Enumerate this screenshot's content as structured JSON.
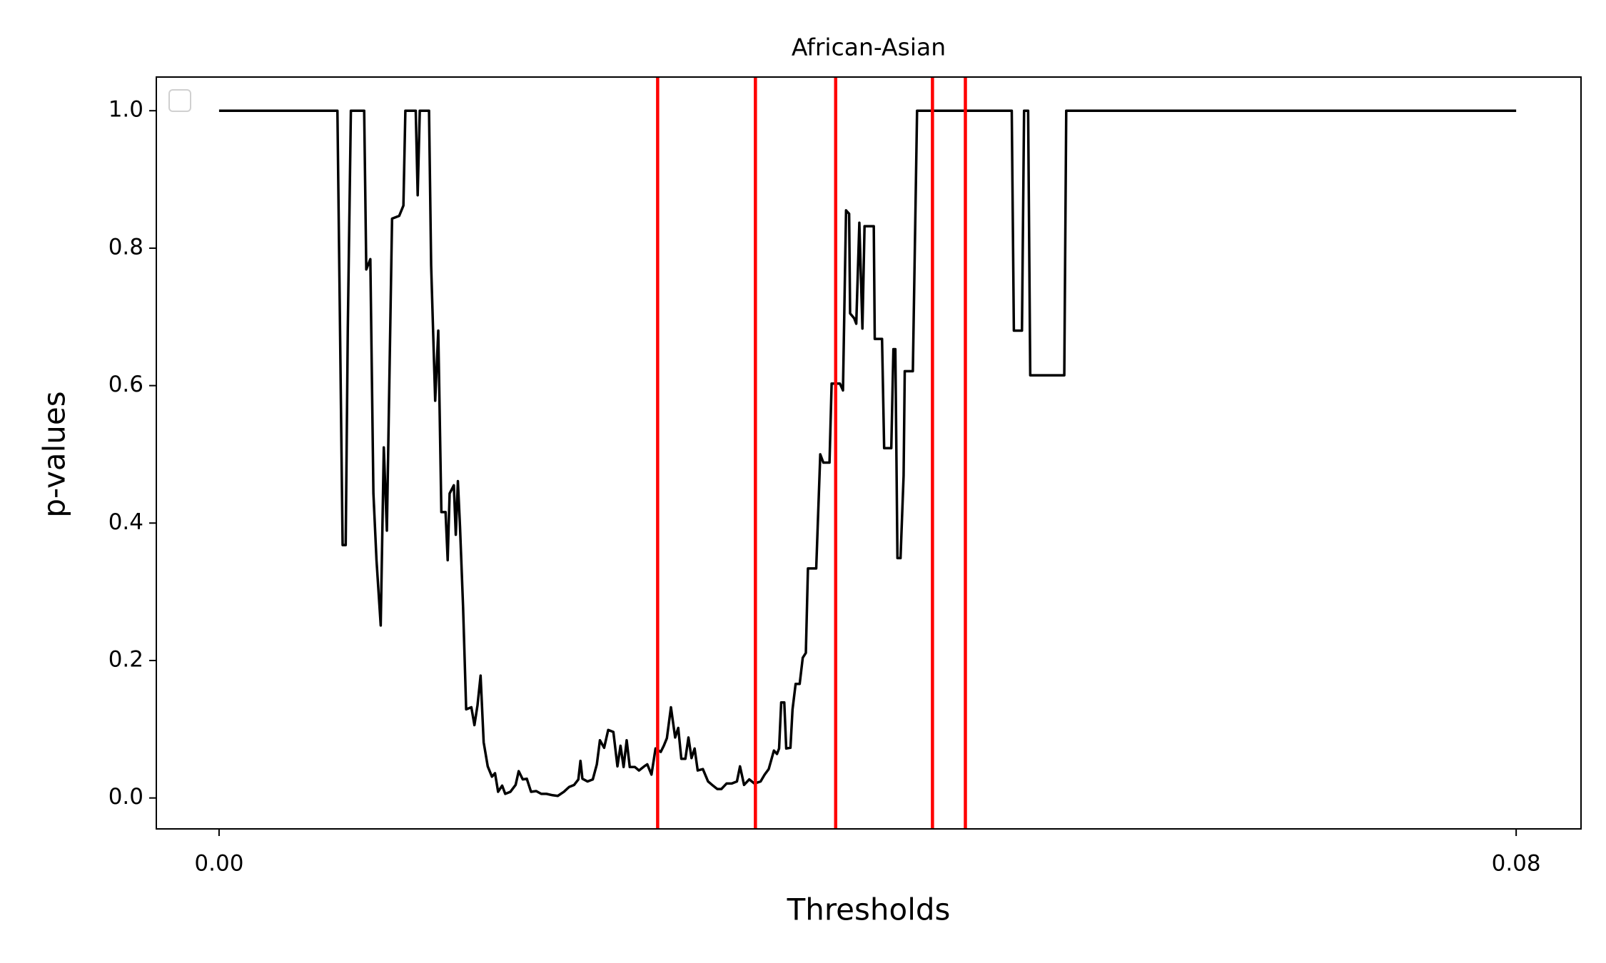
{
  "chart_data": {
    "type": "line",
    "title": "African-Asian",
    "xlabel": "Thresholds",
    "ylabel": "p-values",
    "xlim": [
      -0.00387,
      0.084
    ],
    "ylim": [
      -0.045,
      1.049
    ],
    "xticks": [
      {
        "value": 0,
        "label": "0.00"
      },
      0.08
    ],
    "yticks": [
      {
        "value": 0,
        "label": "0.0"
      },
      0.2,
      0.4,
      0.6,
      0.8,
      {
        "value": 1,
        "label": "1.0"
      }
    ],
    "legend": "upper left",
    "grid": false,
    "vlines": {
      "color": "#ff0000",
      "x": [
        0.02705,
        0.03308,
        0.03803,
        0.044,
        0.04603
      ]
    },
    "series": [
      {
        "color": "#000000",
        "x": [
          0,
          0.0073,
          0.00762,
          0.00781,
          0.00794,
          0.00813,
          0.00895,
          0.00908,
          0.00933,
          0.00952,
          0.00971,
          0.00997,
          0.01016,
          0.01035,
          0.01067,
          0.01111,
          0.01137,
          0.01149,
          0.01213,
          0.01225,
          0.01238,
          0.01295,
          0.01308,
          0.01333,
          0.01352,
          0.01371,
          0.01397,
          0.0141,
          0.01422,
          0.01448,
          0.0146,
          0.01473,
          0.01486,
          0.01505,
          0.01524,
          0.01556,
          0.01575,
          0.01594,
          0.01613,
          0.01632,
          0.01657,
          0.01683,
          0.01702,
          0.01721,
          0.01746,
          0.01765,
          0.01797,
          0.01829,
          0.01848,
          0.01873,
          0.01898,
          0.01924,
          0.01956,
          0.01987,
          0.02019,
          0.02057,
          0.02089,
          0.02127,
          0.02159,
          0.0219,
          0.02216,
          0.02229,
          0.02241,
          0.02273,
          0.02305,
          0.0233,
          0.02349,
          0.02375,
          0.024,
          0.02432,
          0.02457,
          0.02476,
          0.02495,
          0.02514,
          0.02533,
          0.02565,
          0.0259,
          0.02622,
          0.02641,
          0.02667,
          0.02692,
          0.02724,
          0.02743,
          0.02762,
          0.02787,
          0.02813,
          0.02832,
          0.02851,
          0.02876,
          0.02895,
          0.02914,
          0.02933,
          0.02952,
          0.02984,
          0.03016,
          0.03041,
          0.03073,
          0.03098,
          0.0313,
          0.03162,
          0.03194,
          0.03213,
          0.03238,
          0.0327,
          0.03302,
          0.0334,
          0.03365,
          0.0339,
          0.03422,
          0.03441,
          0.03454,
          0.03467,
          0.03486,
          0.03498,
          0.03524,
          0.03537,
          0.03556,
          0.03581,
          0.036,
          0.03619,
          0.03632,
          0.03683,
          0.03708,
          0.03727,
          0.03765,
          0.03778,
          0.03829,
          0.03848,
          0.03867,
          0.03886,
          0.03892,
          0.03917,
          0.0393,
          0.03949,
          0.03968,
          0.03981,
          0.04038,
          0.04044,
          0.04089,
          0.04102,
          0.04146,
          0.04159,
          0.04171,
          0.04184,
          0.04203,
          0.04222,
          0.04229,
          0.04279,
          0.04305,
          0.04889,
          0.04902,
          0.04952,
          0.04965,
          0.0499,
          0.05003,
          0.05213,
          0.05225,
          0.08
        ],
        "values": [
          1.0,
          1.0,
          0.368,
          0.368,
          0.683,
          1.0,
          1.0,
          0.769,
          0.784,
          0.443,
          0.346,
          0.251,
          0.51,
          0.389,
          0.843,
          0.847,
          0.862,
          1.0,
          1.0,
          0.877,
          1.0,
          1.0,
          0.775,
          0.578,
          0.68,
          0.416,
          0.416,
          0.346,
          0.443,
          0.455,
          0.383,
          0.461,
          0.395,
          0.278,
          0.129,
          0.132,
          0.106,
          0.135,
          0.178,
          0.081,
          0.046,
          0.031,
          0.036,
          0.009,
          0.018,
          0.006,
          0.009,
          0.019,
          0.039,
          0.027,
          0.028,
          0.009,
          0.01,
          0.006,
          0.006,
          0.004,
          0.003,
          0.009,
          0.016,
          0.019,
          0.027,
          0.054,
          0.028,
          0.024,
          0.027,
          0.049,
          0.084,
          0.073,
          0.099,
          0.096,
          0.046,
          0.076,
          0.045,
          0.084,
          0.045,
          0.045,
          0.04,
          0.046,
          0.049,
          0.034,
          0.072,
          0.067,
          0.076,
          0.087,
          0.132,
          0.088,
          0.102,
          0.057,
          0.057,
          0.088,
          0.058,
          0.072,
          0.04,
          0.042,
          0.024,
          0.019,
          0.013,
          0.013,
          0.021,
          0.021,
          0.024,
          0.046,
          0.019,
          0.027,
          0.021,
          0.024,
          0.034,
          0.042,
          0.069,
          0.064,
          0.072,
          0.139,
          0.139,
          0.072,
          0.073,
          0.129,
          0.166,
          0.166,
          0.204,
          0.211,
          0.334,
          0.334,
          0.5,
          0.488,
          0.488,
          0.603,
          0.603,
          0.593,
          0.855,
          0.85,
          0.705,
          0.698,
          0.69,
          0.837,
          0.683,
          0.832,
          0.832,
          0.668,
          0.668,
          0.509,
          0.509,
          0.653,
          0.653,
          0.349,
          0.349,
          0.469,
          0.621,
          0.621,
          1.0,
          1.0,
          0.68,
          0.68,
          1.0,
          1.0,
          0.615,
          0.615,
          1.0,
          1.0
        ]
      }
    ]
  }
}
